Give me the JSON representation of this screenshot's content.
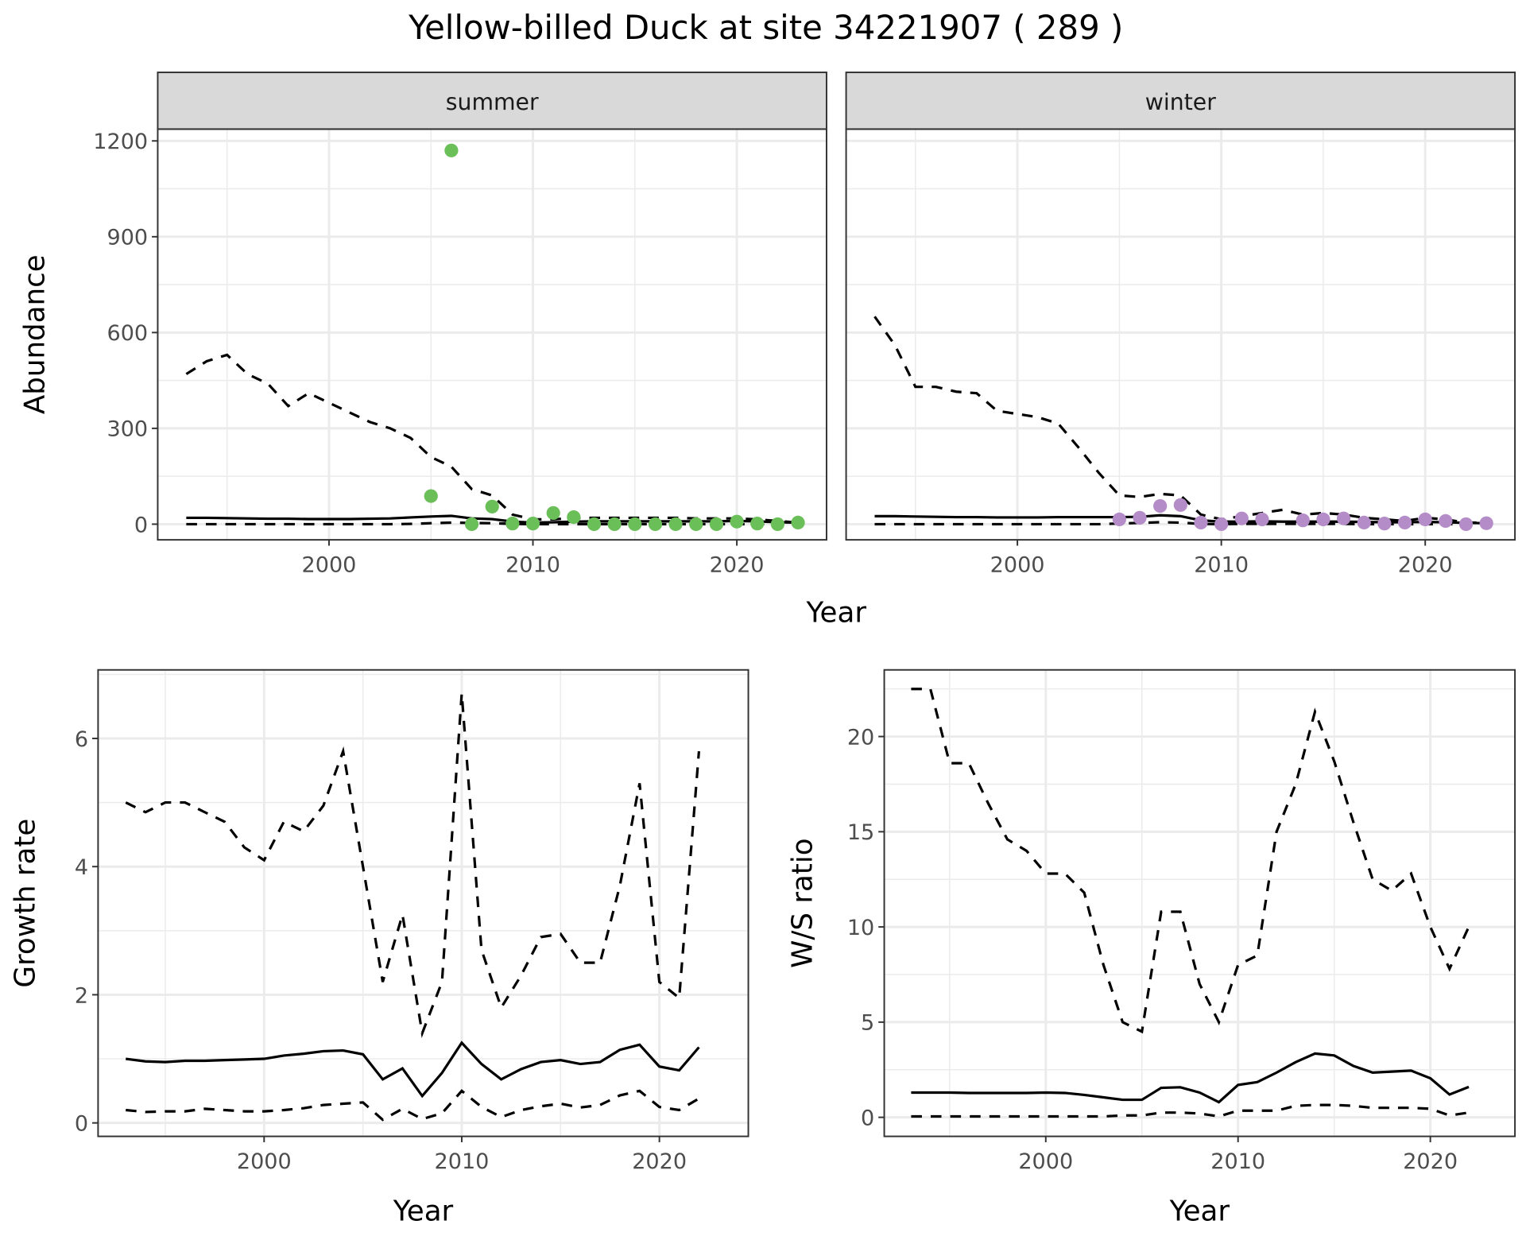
{
  "title": "Yellow-billed Duck at site 34221907 ( 289 )",
  "colors": {
    "summer_points": "#6BBF59",
    "winter_points": "#B48CC8",
    "lines": "#000000",
    "strip": "#D9D9D9",
    "grid": "#EBEBEB"
  },
  "chart_data": [
    {
      "type": "scatter",
      "facet": "summer",
      "xlabel": "Year",
      "ylabel": "Abundance",
      "xlim": [
        1991.6,
        2024.4
      ],
      "ylim": [
        -49,
        1237
      ],
      "xticks": [
        2000,
        2010,
        2020
      ],
      "yticks": [
        0,
        300,
        600,
        900,
        1200
      ],
      "grid": true,
      "points": {
        "x": [
          2005,
          2006,
          2007,
          2008,
          2009,
          2010,
          2011,
          2012,
          2013,
          2014,
          2015,
          2016,
          2017,
          2018,
          2019,
          2020,
          2021,
          2022,
          2023
        ],
        "y": [
          88,
          1170,
          0,
          55,
          2,
          2,
          35,
          22,
          0,
          0,
          0,
          0,
          0,
          0,
          0,
          8,
          2,
          0,
          5
        ]
      },
      "lines_x": [
        1993,
        1994,
        1995,
        1996,
        1997,
        1998,
        1999,
        2000,
        2001,
        2002,
        2003,
        2004,
        2005,
        2006,
        2007,
        2008,
        2009,
        2010,
        2011,
        2012,
        2013,
        2014,
        2015,
        2016,
        2017,
        2018,
        2019,
        2020,
        2021,
        2022,
        2023
      ],
      "estimate": [
        20,
        20,
        19,
        18,
        17,
        17,
        16,
        16,
        16,
        17,
        18,
        21,
        24,
        26,
        18,
        16,
        8,
        5,
        6,
        8,
        9,
        9,
        9,
        9,
        9,
        9,
        9,
        10,
        9,
        6,
        5
      ],
      "upper": [
        470,
        510,
        530,
        470,
        440,
        370,
        410,
        380,
        350,
        320,
        300,
        270,
        210,
        180,
        110,
        90,
        30,
        15,
        15,
        20,
        20,
        20,
        20,
        20,
        20,
        18,
        18,
        18,
        15,
        10,
        5
      ],
      "lower": [
        0,
        0,
        0,
        0,
        0,
        0,
        0,
        0,
        0,
        0,
        0,
        1,
        3,
        5,
        4,
        3,
        1,
        0,
        0,
        0,
        0,
        0,
        0,
        0,
        0,
        0,
        0,
        0,
        0,
        0,
        0
      ]
    },
    {
      "type": "scatter",
      "facet": "winter",
      "xlabel": "Year",
      "ylabel": "Abundance",
      "xlim": [
        1991.6,
        2024.4
      ],
      "ylim": [
        -49,
        1237
      ],
      "xticks": [
        2000,
        2010,
        2020
      ],
      "yticks": [
        0,
        300,
        600,
        900,
        1200
      ],
      "grid": true,
      "points": {
        "x": [
          2005,
          2006,
          2007,
          2008,
          2009,
          2010,
          2011,
          2012,
          2014,
          2015,
          2016,
          2017,
          2018,
          2019,
          2020,
          2021,
          2022,
          2023
        ],
        "y": [
          15,
          20,
          57,
          60,
          5,
          0,
          18,
          15,
          12,
          15,
          18,
          5,
          2,
          5,
          15,
          10,
          0,
          3
        ]
      },
      "lines_x": [
        1993,
        1994,
        1995,
        1996,
        1997,
        1998,
        1999,
        2000,
        2001,
        2002,
        2003,
        2004,
        2005,
        2006,
        2007,
        2008,
        2009,
        2010,
        2011,
        2012,
        2013,
        2014,
        2015,
        2016,
        2017,
        2018,
        2019,
        2020,
        2021,
        2022,
        2023
      ],
      "estimate": [
        25,
        25,
        24,
        23,
        22,
        22,
        21,
        21,
        21,
        22,
        22,
        22,
        22,
        23,
        28,
        25,
        12,
        8,
        8,
        9,
        8,
        8,
        8,
        8,
        7,
        6,
        6,
        7,
        6,
        4,
        3
      ],
      "upper": [
        650,
        560,
        430,
        430,
        415,
        410,
        355,
        345,
        335,
        315,
        240,
        160,
        90,
        85,
        95,
        90,
        30,
        15,
        25,
        35,
        45,
        30,
        35,
        30,
        20,
        15,
        10,
        20,
        15,
        5,
        5
      ],
      "lower": [
        0,
        0,
        0,
        0,
        0,
        0,
        0,
        0,
        0,
        0,
        0,
        0,
        2,
        4,
        6,
        5,
        1,
        0,
        1,
        1,
        1,
        1,
        1,
        1,
        0,
        0,
        0,
        0,
        0,
        0,
        0
      ]
    },
    {
      "type": "line",
      "xlabel": "Year",
      "ylabel": "Growth rate",
      "xlim": [
        1991.6,
        2024.5
      ],
      "ylim": [
        -0.21,
        7.07
      ],
      "xticks": [
        2000,
        2010,
        2020
      ],
      "yticks": [
        0,
        2,
        4,
        6
      ],
      "grid": true,
      "x": [
        1993,
        1994,
        1995,
        1996,
        1997,
        1998,
        1999,
        2000,
        2001,
        2002,
        2003,
        2004,
        2005,
        2006,
        2007,
        2008,
        2009,
        2010,
        2011,
        2012,
        2013,
        2014,
        2015,
        2016,
        2017,
        2018,
        2019,
        2020,
        2021,
        2022
      ],
      "estimate": [
        1.0,
        0.96,
        0.95,
        0.97,
        0.97,
        0.98,
        0.99,
        1.0,
        1.05,
        1.08,
        1.12,
        1.13,
        1.07,
        0.68,
        0.85,
        0.42,
        0.78,
        1.25,
        0.92,
        0.68,
        0.84,
        0.95,
        0.98,
        0.92,
        0.95,
        1.14,
        1.22,
        0.88,
        0.82,
        1.18
      ],
      "upper": [
        5.0,
        4.85,
        5.0,
        5.0,
        4.85,
        4.7,
        4.3,
        4.1,
        4.7,
        4.55,
        4.95,
        5.8,
        4.0,
        2.2,
        3.25,
        1.4,
        2.2,
        6.7,
        2.7,
        1.8,
        2.3,
        2.9,
        2.95,
        2.5,
        2.5,
        3.7,
        5.3,
        2.2,
        1.95,
        5.8
      ],
      "lower": [
        0.2,
        0.17,
        0.18,
        0.18,
        0.22,
        0.2,
        0.18,
        0.18,
        0.2,
        0.23,
        0.28,
        0.3,
        0.32,
        0.05,
        0.22,
        0.06,
        0.15,
        0.5,
        0.25,
        0.09,
        0.2,
        0.26,
        0.3,
        0.24,
        0.28,
        0.43,
        0.5,
        0.25,
        0.2,
        0.38
      ]
    },
    {
      "type": "line",
      "xlabel": "Year",
      "ylabel": "W/S ratio",
      "xlim": [
        1991.6,
        2024.4
      ],
      "ylim": [
        -1.0,
        23.5
      ],
      "xticks": [
        2000,
        2010,
        2020
      ],
      "yticks": [
        0,
        5,
        10,
        15,
        20
      ],
      "grid": true,
      "x": [
        1993,
        1994,
        1995,
        1996,
        1997,
        1998,
        1999,
        2000,
        2001,
        2002,
        2003,
        2004,
        2005,
        2006,
        2007,
        2008,
        2009,
        2010,
        2011,
        2012,
        2013,
        2014,
        2015,
        2016,
        2017,
        2018,
        2019,
        2020,
        2021,
        2022
      ],
      "estimate": [
        1.3,
        1.3,
        1.3,
        1.28,
        1.28,
        1.28,
        1.28,
        1.3,
        1.28,
        1.18,
        1.05,
        0.92,
        0.92,
        1.55,
        1.58,
        1.3,
        0.8,
        1.7,
        1.85,
        2.35,
        2.9,
        3.35,
        3.25,
        2.7,
        2.35,
        2.4,
        2.45,
        2.05,
        1.2,
        1.6
      ],
      "upper": [
        22.5,
        22.5,
        18.6,
        18.6,
        16.5,
        14.6,
        14.0,
        12.8,
        12.8,
        11.8,
        8.0,
        5.0,
        4.5,
        10.8,
        10.8,
        7.0,
        5.0,
        8.0,
        8.5,
        15.0,
        17.5,
        21.3,
        18.7,
        15.5,
        12.5,
        11.9,
        12.8,
        10.0,
        7.8,
        10.0
      ],
      "lower": [
        0.05,
        0.05,
        0.05,
        0.05,
        0.05,
        0.05,
        0.05,
        0.05,
        0.05,
        0.05,
        0.05,
        0.1,
        0.1,
        0.25,
        0.25,
        0.2,
        0.05,
        0.35,
        0.35,
        0.35,
        0.6,
        0.65,
        0.65,
        0.6,
        0.5,
        0.5,
        0.5,
        0.45,
        0.1,
        0.25
      ]
    }
  ]
}
